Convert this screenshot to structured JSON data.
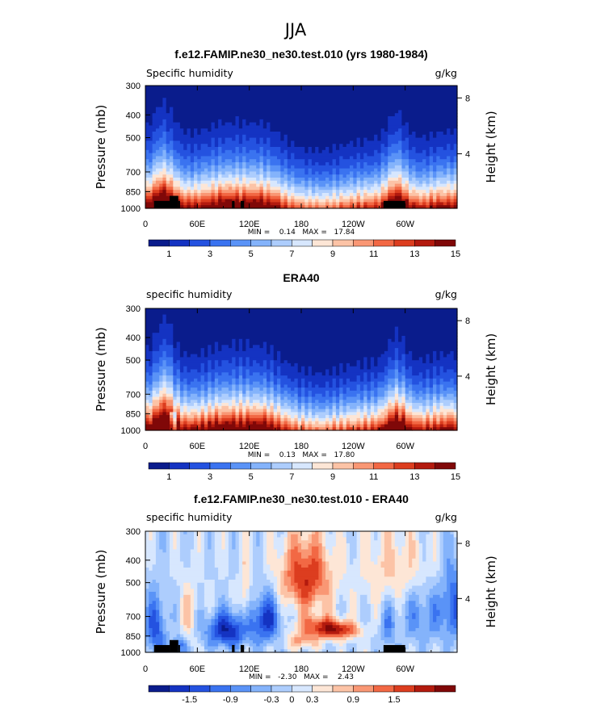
{
  "figure": {
    "season_title": "JJA"
  },
  "colorbar_colors": [
    "#0a1c8c",
    "#1433c2",
    "#2452e0",
    "#3a73f0",
    "#5a93f7",
    "#84b3fb",
    "#adcdfd",
    "#d7e7fe",
    "#fde6d6",
    "#fcc3a6",
    "#f99774",
    "#f26844",
    "#dc3d1f",
    "#b31a0e",
    "#800808"
  ],
  "chart_data": [
    {
      "type": "heatmap",
      "title": "f.e12.FAMIP.ne30_ne30.test.010 (yrs 1980-1984)",
      "variable_label": "Specific humidity",
      "units": "g/kg",
      "ylabel_left": "Pressure (mb)",
      "ylabel_right": "Height (km)",
      "x_ticks": [
        "0",
        "60E",
        "120E",
        "180",
        "120W",
        "60W"
      ],
      "x_tick_lons": [
        0,
        60,
        120,
        180,
        240,
        300
      ],
      "xlim": [
        0,
        360
      ],
      "y_ticks": [
        "300",
        "400",
        "500",
        "700",
        "850",
        "1000"
      ],
      "y_tick_values": [
        300,
        400,
        500,
        700,
        850,
        1000
      ],
      "ylim": [
        300,
        1000
      ],
      "height_ticks": [
        "8",
        "4"
      ],
      "height_tick_values": [
        8,
        4
      ],
      "stats": "MIN =    0.14   MAX =   17.84",
      "colorbar_labels": [
        "1",
        "3",
        "5",
        "7",
        "9",
        "11",
        "13",
        "15"
      ],
      "field": "mean",
      "has_topography": true
    },
    {
      "type": "heatmap",
      "title": "ERA40",
      "variable_label": "specific humidity",
      "units": "g/kg",
      "ylabel_left": "Pressure (mb)",
      "ylabel_right": "Height (km)",
      "x_ticks": [
        "0",
        "60E",
        "120E",
        "180",
        "120W",
        "60W"
      ],
      "x_tick_lons": [
        0,
        60,
        120,
        180,
        240,
        300
      ],
      "xlim": [
        0,
        360
      ],
      "y_ticks": [
        "300",
        "400",
        "500",
        "700",
        "850",
        "1000"
      ],
      "y_tick_values": [
        300,
        400,
        500,
        700,
        850,
        1000
      ],
      "ylim": [
        300,
        1000
      ],
      "height_ticks": [
        "8",
        "4"
      ],
      "height_tick_values": [
        8,
        4
      ],
      "stats": "MIN =    0.13   MAX =   17.80",
      "colorbar_labels": [
        "1",
        "3",
        "5",
        "7",
        "9",
        "11",
        "13",
        "15"
      ],
      "field": "mean",
      "has_topography": false
    },
    {
      "type": "heatmap",
      "title": "f.e12.FAMIP.ne30_ne30.test.010 - ERA40",
      "variable_label": "specific humidity",
      "units": "g/kg",
      "ylabel_left": "Pressure (mb)",
      "ylabel_right": "Height (km)",
      "x_ticks": [
        "0",
        "60E",
        "120E",
        "180",
        "120W",
        "60W"
      ],
      "x_tick_lons": [
        0,
        60,
        120,
        180,
        240,
        300
      ],
      "xlim": [
        0,
        360
      ],
      "y_ticks": [
        "300",
        "400",
        "500",
        "700",
        "850",
        "1000"
      ],
      "y_tick_values": [
        300,
        400,
        500,
        700,
        850,
        1000
      ],
      "ylim": [
        300,
        1000
      ],
      "height_ticks": [
        "8",
        "4"
      ],
      "height_tick_values": [
        8,
        4
      ],
      "stats": "MIN =   -2.30   MAX =    2.43",
      "colorbar_labels": [
        "-1.5",
        "-0.9",
        "-0.3",
        "0",
        "0.3",
        "0.9",
        "1.5"
      ],
      "field": "diff",
      "has_topography": true
    }
  ]
}
